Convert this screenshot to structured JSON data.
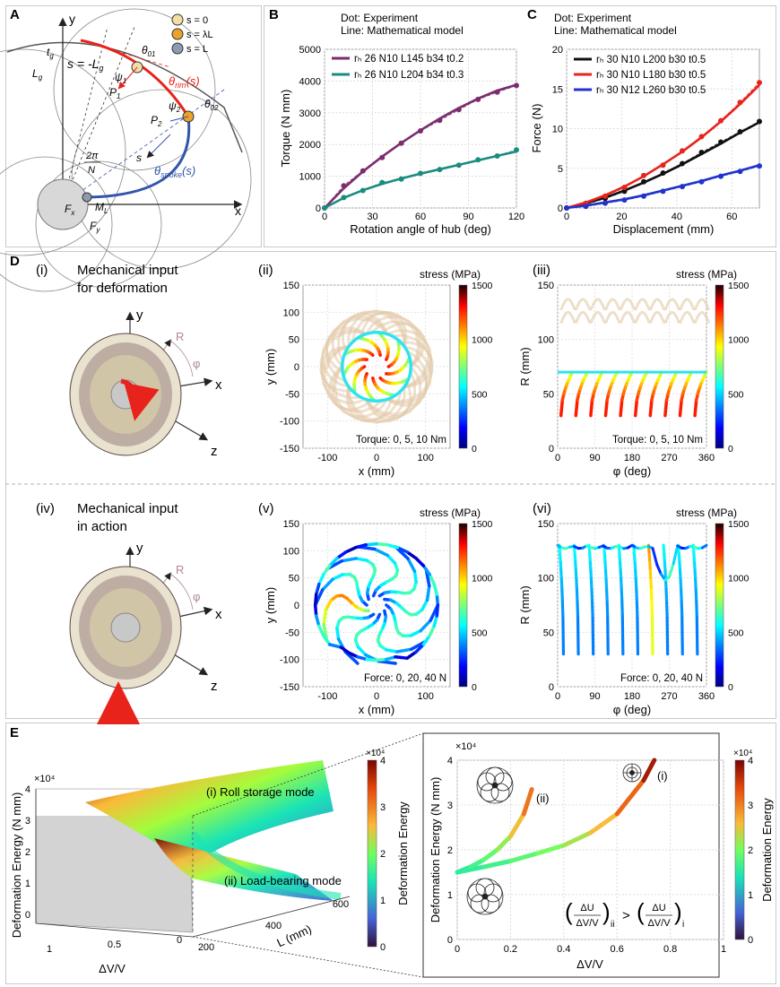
{
  "panel_letters": {
    "A": "A",
    "B": "B",
    "C": "C",
    "D": "D",
    "E": "E"
  },
  "colors": {
    "purple": "#7b2d6e",
    "teal": "#1a8c7f",
    "black": "#111111",
    "red": "#e8231b",
    "blue": "#2233cc",
    "arm_light": "#d9c9a8",
    "arm_dark": "#6e5050",
    "hub": "#c8c8c8",
    "frame": "#c9c9c9"
  },
  "panelA": {
    "legend": [
      {
        "label": "s = 0",
        "color": "#f3dfa5"
      },
      {
        "label": "s = λL",
        "color": "#e9a32a"
      },
      {
        "label": "s = L",
        "color": "#8e9ab0"
      }
    ],
    "labels": {
      "y": "y",
      "x": "x",
      "tg": "t",
      "tg_sub": "g",
      "Lg": "L",
      "Lg_sub": "g",
      "s_eq": "s = -L",
      "s_eq_sub": "g",
      "theta01": "θ",
      "theta01_sub": "01",
      "theta02": "θ",
      "theta02_sub": "02",
      "psi1": "ψ",
      "psi1_sub": "1",
      "psi2": "ψ",
      "psi2_sub": "2",
      "P1": "P",
      "P1_sub": "1",
      "P2": "P",
      "P2_sub": "2",
      "theta_rim": "θ",
      "theta_rim_sub": "rim",
      "theta_rim_arg": "(s)",
      "theta_spoke": "θ",
      "theta_spoke_sub": "spoke",
      "theta_spoke_arg": "(s)",
      "s_vec": "s",
      "two_pi": "2π",
      "N": "N",
      "Fx": "F",
      "Fx_sub": "x",
      "Fy": "F",
      "Fy_sub": "y",
      "ML": "M",
      "ML_sub": "L"
    }
  },
  "chart_data": [
    {
      "id": "B",
      "type": "line",
      "annotation": [
        "Dot: Experiment",
        "Line: Mathematical model"
      ],
      "xlabel": "Rotation angle of hub (deg)",
      "ylabel": "Torque (N mm)",
      "xlim": [
        0,
        120
      ],
      "ylim": [
        0,
        5000
      ],
      "xticks": [
        0,
        30,
        60,
        90,
        120
      ],
      "yticks": [
        0,
        1000,
        2000,
        3000,
        4000,
        5000
      ],
      "series": [
        {
          "name": "rₕ 26 N10 L145 b34 t0.2",
          "color": "#7b2d6e",
          "x": [
            0,
            12,
            24,
            36,
            48,
            60,
            72,
            84,
            96,
            108,
            120
          ],
          "model": [
            0,
            620,
            1150,
            1620,
            2050,
            2450,
            2820,
            3150,
            3450,
            3700,
            3880
          ],
          "experiment": [
            0,
            700,
            1170,
            1590,
            2040,
            2430,
            2760,
            3100,
            3420,
            3650,
            3860
          ]
        },
        {
          "name": "rₕ 26 N10 L204 b34 t0.3",
          "color": "#1a8c7f",
          "x": [
            0,
            12,
            24,
            36,
            48,
            60,
            72,
            84,
            96,
            108,
            120
          ],
          "model": [
            0,
            320,
            560,
            760,
            930,
            1080,
            1220,
            1360,
            1500,
            1640,
            1780
          ],
          "experiment": [
            0,
            330,
            550,
            800,
            910,
            1090,
            1210,
            1350,
            1520,
            1640,
            1830
          ]
        }
      ]
    },
    {
      "id": "C",
      "type": "line",
      "annotation": [
        "Dot: Experiment",
        "Line: Mathematical model"
      ],
      "xlabel": "Displacement (mm)",
      "ylabel": "Force (N)",
      "xlim": [
        0,
        70
      ],
      "ylim": [
        0,
        20
      ],
      "xticks": [
        0,
        20,
        40,
        60
      ],
      "yticks": [
        0,
        5,
        10,
        15,
        20
      ],
      "series": [
        {
          "name": "rₕ 30 N10 L200 b30 t0.5",
          "color": "#111111",
          "x": [
            0,
            7,
            14,
            21,
            28,
            35,
            42,
            49,
            56,
            63,
            70
          ],
          "model": [
            0,
            0.6,
            1.3,
            2.2,
            3.2,
            4.3,
            5.5,
            6.8,
            8.1,
            9.5,
            10.8
          ],
          "experiment": [
            0,
            0.5,
            1.2,
            2.1,
            3.3,
            4.4,
            5.6,
            7.0,
            8.3,
            9.6,
            10.9
          ]
        },
        {
          "name": "rₕ 30 N10 L180 b30 t0.5",
          "color": "#e8231b",
          "x": [
            0,
            7,
            14,
            21,
            28,
            35,
            42,
            49,
            56,
            63,
            70
          ],
          "model": [
            0,
            0.7,
            1.6,
            2.7,
            4.0,
            5.5,
            7.1,
            8.9,
            10.9,
            13.1,
            15.5
          ],
          "experiment": [
            0,
            0.6,
            1.5,
            2.6,
            4.1,
            5.4,
            7.2,
            9.0,
            11.0,
            13.3,
            15.8
          ]
        },
        {
          "name": "rₕ 30 N12 L260 b30 t0.5",
          "color": "#2233cc",
          "x": [
            0,
            7,
            14,
            21,
            28,
            35,
            42,
            49,
            56,
            63,
            70
          ],
          "model": [
            0,
            0.3,
            0.7,
            1.1,
            1.6,
            2.2,
            2.8,
            3.4,
            4.1,
            4.7,
            5.4
          ],
          "experiment": [
            0,
            0.2,
            0.6,
            1.0,
            1.5,
            2.1,
            2.7,
            3.3,
            4.0,
            4.6,
            5.3
          ]
        }
      ]
    },
    {
      "id": "D-ii",
      "type": "scatter",
      "xlabel": "x (mm)",
      "ylabel": "y (mm)",
      "xlim": [
        -150,
        150
      ],
      "ylim": [
        -150,
        150
      ],
      "xticks": [
        -100,
        0,
        100
      ],
      "yticks": [
        -150,
        -100,
        -50,
        0,
        50,
        100,
        150
      ],
      "colorbar": {
        "label": "stress (MPa)",
        "range": [
          0,
          1500
        ],
        "ticks": [
          0,
          500,
          1000,
          1500
        ]
      },
      "note": "Torque: 0, 5, 10 Nm"
    },
    {
      "id": "D-iii",
      "type": "line",
      "xlabel": "φ (deg)",
      "ylabel": "R (mm)",
      "xlim": [
        0,
        360
      ],
      "ylim": [
        0,
        150
      ],
      "xticks": [
        0,
        90,
        180,
        270,
        360
      ],
      "yticks": [
        0,
        50,
        100,
        150
      ],
      "colorbar": {
        "label": "stress (MPa)",
        "range": [
          0,
          1500
        ],
        "ticks": [
          0,
          500,
          1000,
          1500
        ]
      },
      "note": "Torque: 0, 5, 10 Nm"
    },
    {
      "id": "D-v",
      "type": "scatter",
      "xlabel": "x (mm)",
      "ylabel": "y (mm)",
      "xlim": [
        -150,
        150
      ],
      "ylim": [
        -150,
        150
      ],
      "xticks": [
        -100,
        0,
        100
      ],
      "yticks": [
        -150,
        -100,
        -50,
        0,
        50,
        100,
        150
      ],
      "colorbar": {
        "label": "stress (MPa)",
        "range": [
          0,
          1500
        ],
        "ticks": [
          0,
          500,
          1000,
          1500
        ]
      },
      "note": "Force: 0, 20, 40 N"
    },
    {
      "id": "D-vi",
      "type": "line",
      "xlabel": "φ (deg)",
      "ylabel": "R (mm)",
      "xlim": [
        0,
        360
      ],
      "ylim": [
        0,
        150
      ],
      "xticks": [
        0,
        90,
        180,
        270,
        360
      ],
      "yticks": [
        0,
        50,
        100,
        150
      ],
      "colorbar": {
        "label": "stress (MPa)",
        "range": [
          0,
          1500
        ],
        "ticks": [
          0,
          500,
          1000,
          1500
        ]
      },
      "note": "Force: 0, 20, 40 N"
    },
    {
      "id": "E-3d",
      "type": "area",
      "zlabel": "Deformation Energy (N mm)",
      "zscale": "×10⁴",
      "zticks": [
        0,
        1,
        2,
        3,
        4
      ],
      "xlabel": "ΔV/V",
      "xticks": [
        0,
        0.5,
        1
      ],
      "ylabel": "L (mm)",
      "yticks": [
        200,
        400,
        600
      ],
      "annotations": [
        "(i) Roll storage mode",
        "(ii) Load-bearing mode"
      ],
      "colorbar": {
        "label": "Deformation Energy",
        "range": [
          0,
          4
        ],
        "ticks": [
          0,
          1,
          2,
          3,
          4
        ],
        "scale": "×10⁴"
      }
    },
    {
      "id": "E-2d",
      "type": "line",
      "xlabel": "ΔV/V",
      "ylabel": "Deformation Energy (N mm)",
      "yscale": "×10⁴",
      "xlim": [
        0,
        1
      ],
      "ylim": [
        0,
        4
      ],
      "xticks": [
        0,
        0.2,
        0.4,
        0.6,
        0.8,
        1
      ],
      "yticks": [
        0,
        1,
        2,
        3,
        4
      ],
      "series": [
        {
          "name": "(i)",
          "x": [
            0,
            0.1,
            0.2,
            0.3,
            0.4,
            0.5,
            0.6,
            0.7,
            0.74
          ],
          "y": [
            1.5,
            1.62,
            1.75,
            1.92,
            2.1,
            2.38,
            2.8,
            3.55,
            4.0
          ]
        },
        {
          "name": "(ii)",
          "x": [
            0,
            0.05,
            0.1,
            0.15,
            0.2,
            0.25,
            0.28
          ],
          "y": [
            1.5,
            1.62,
            1.78,
            2.0,
            2.3,
            2.8,
            3.35
          ]
        }
      ],
      "formula": {
        "lhs_num": "ΔU",
        "lhs_den": "ΔV/V",
        "lhs_sub": "ii",
        "op": ">",
        "rhs_num": "ΔU",
        "rhs_den": "ΔV/V",
        "rhs_sub": "i"
      },
      "colorbar": {
        "label": "Deformation Energy",
        "range": [
          0,
          4
        ],
        "ticks": [
          0,
          1,
          2,
          3,
          4
        ],
        "scale": "×10⁴"
      }
    }
  ],
  "panelD": {
    "i_num": "(i)",
    "ii_num": "(ii)",
    "iii_num": "(iii)",
    "iv_num": "(iv)",
    "v_num": "(v)",
    "vi_num": "(vi)",
    "i_title1": "Mechanical input",
    "i_title2": "for deformation",
    "iv_title1": "Mechanical input",
    "iv_title2": "in action",
    "axes": {
      "y": "y",
      "x": "x",
      "z": "z",
      "R": "R",
      "phi": "φ"
    }
  }
}
